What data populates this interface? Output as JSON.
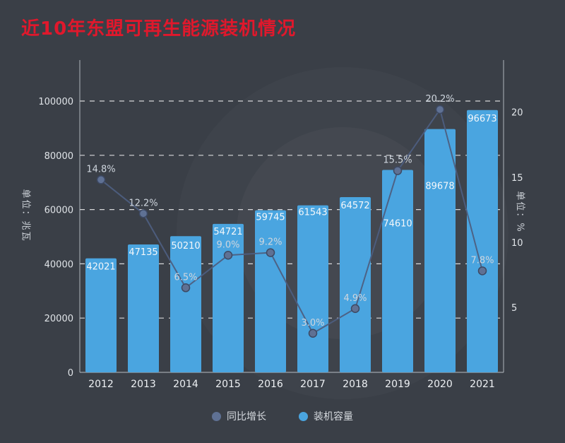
{
  "chart_data": {
    "type": "bar+line",
    "title": "近10年东盟可再生能源装机情况",
    "title_color": "#e0182c",
    "background_color": "#3a3f47",
    "categories": [
      "2012",
      "2013",
      "2014",
      "2015",
      "2016",
      "2017",
      "2018",
      "2019",
      "2020",
      "2021"
    ],
    "series": [
      {
        "name": "装机容量",
        "type": "bar",
        "axis": "left",
        "color": "#4aa5e0",
        "values": [
          42021,
          47135,
          50210,
          54721,
          59745,
          61543,
          64572,
          74610,
          89678,
          96673
        ]
      },
      {
        "name": "同比增长",
        "type": "line",
        "axis": "right",
        "unit": "%",
        "color": "#5f7194",
        "line_color": "#4d5e80",
        "values": [
          14.8,
          12.2,
          6.5,
          9.0,
          9.2,
          3.0,
          4.9,
          15.5,
          20.2,
          7.8
        ]
      }
    ],
    "left_axis": {
      "label": "单位：兆瓦",
      "min": 0,
      "max": 100000,
      "ticks": [
        0,
        20000,
        40000,
        60000,
        80000,
        100000
      ]
    },
    "right_axis": {
      "label": "单位：%",
      "min": 0,
      "max": 24,
      "ticks": [
        5,
        10,
        15,
        20
      ]
    },
    "legend": [
      {
        "label": "同比增长",
        "color": "#5f7194"
      },
      {
        "label": "装机容量",
        "color": "#4aa5e0"
      }
    ],
    "grid": {
      "dashed": true,
      "color": "#ffffff"
    },
    "bar_label_dy": [
      16,
      15,
      18,
      15,
      14,
      14,
      16,
      80,
      85,
      16
    ]
  }
}
